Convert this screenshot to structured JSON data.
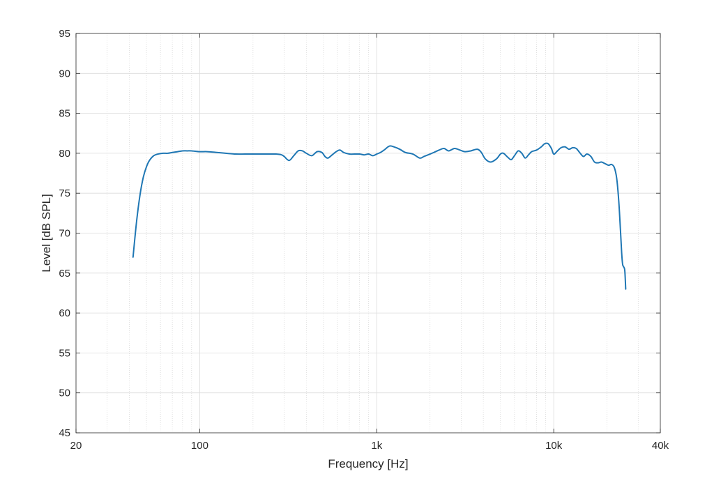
{
  "chart_data": {
    "type": "line",
    "title": "",
    "xlabel": "Frequency [Hz]",
    "ylabel": "Level [dB SPL]",
    "xscale": "log",
    "xlim": [
      20,
      40000
    ],
    "ylim": [
      45,
      95
    ],
    "grid": true,
    "legend": "none",
    "xticks": [
      {
        "value": 20,
        "label": "20"
      },
      {
        "value": 100,
        "label": "100"
      },
      {
        "value": 1000,
        "label": "1k"
      },
      {
        "value": 10000,
        "label": "10k"
      },
      {
        "value": 40000,
        "label": "40k"
      }
    ],
    "yticks": [
      {
        "value": 45,
        "label": "45"
      },
      {
        "value": 50,
        "label": "50"
      },
      {
        "value": 55,
        "label": "55"
      },
      {
        "value": 60,
        "label": "60"
      },
      {
        "value": 65,
        "label": "65"
      },
      {
        "value": 70,
        "label": "70"
      },
      {
        "value": 75,
        "label": "75"
      },
      {
        "value": 80,
        "label": "80"
      },
      {
        "value": 85,
        "label": "85"
      },
      {
        "value": 90,
        "label": "90"
      },
      {
        "value": 95,
        "label": "95"
      }
    ],
    "series": [
      {
        "color": "#1f77b4",
        "x": [
          42,
          44,
          46,
          48,
          50,
          52,
          55,
          58,
          62,
          66,
          70,
          75,
          80,
          85,
          90,
          100,
          110,
          125,
          140,
          160,
          180,
          200,
          220,
          250,
          270,
          290,
          300,
          320,
          340,
          360,
          380,
          400,
          430,
          460,
          490,
          510,
          530,
          560,
          590,
          620,
          650,
          700,
          750,
          800,
          850,
          900,
          950,
          1000,
          1050,
          1100,
          1180,
          1250,
          1350,
          1450,
          1600,
          1750,
          1850,
          2000,
          2100,
          2250,
          2400,
          2550,
          2750,
          2950,
          3150,
          3400,
          3700,
          3900,
          4100,
          4400,
          4750,
          5000,
          5200,
          5500,
          5750,
          6000,
          6300,
          6600,
          6900,
          7200,
          7500,
          8000,
          8500,
          8900,
          9300,
          9700,
          10000,
          10500,
          11000,
          11600,
          12200,
          12800,
          13400,
          14000,
          14700,
          15400,
          16200,
          17000,
          17800,
          18600,
          19500,
          20400,
          21200,
          22000,
          22700,
          23300,
          23800,
          24200,
          24500,
          24800,
          25200,
          25500
        ],
        "y": [
          67,
          71.5,
          74.8,
          77,
          78.3,
          79.1,
          79.7,
          79.9,
          80.0,
          80.0,
          80.1,
          80.2,
          80.3,
          80.3,
          80.3,
          80.2,
          80.2,
          80.1,
          80.0,
          79.9,
          79.9,
          79.9,
          79.9,
          79.9,
          79.9,
          79.8,
          79.6,
          79.1,
          79.7,
          80.3,
          80.3,
          80.0,
          79.7,
          80.2,
          80.1,
          79.6,
          79.4,
          79.8,
          80.2,
          80.4,
          80.1,
          79.9,
          79.9,
          79.9,
          79.8,
          79.9,
          79.7,
          79.9,
          80.1,
          80.4,
          80.9,
          80.8,
          80.5,
          80.1,
          79.9,
          79.4,
          79.6,
          79.9,
          80.1,
          80.4,
          80.6,
          80.3,
          80.6,
          80.4,
          80.2,
          80.3,
          80.5,
          80.1,
          79.3,
          78.9,
          79.3,
          79.9,
          80.0,
          79.5,
          79.2,
          79.7,
          80.3,
          80.0,
          79.4,
          79.8,
          80.2,
          80.4,
          80.8,
          81.2,
          81.2,
          80.6,
          79.9,
          80.3,
          80.7,
          80.8,
          80.5,
          80.7,
          80.6,
          80.1,
          79.6,
          79.9,
          79.6,
          78.9,
          78.8,
          78.9,
          78.7,
          78.5,
          78.6,
          78.2,
          76.8,
          74.0,
          70.5,
          67.5,
          66.1,
          65.8,
          65.3,
          63.0
        ]
      }
    ]
  }
}
